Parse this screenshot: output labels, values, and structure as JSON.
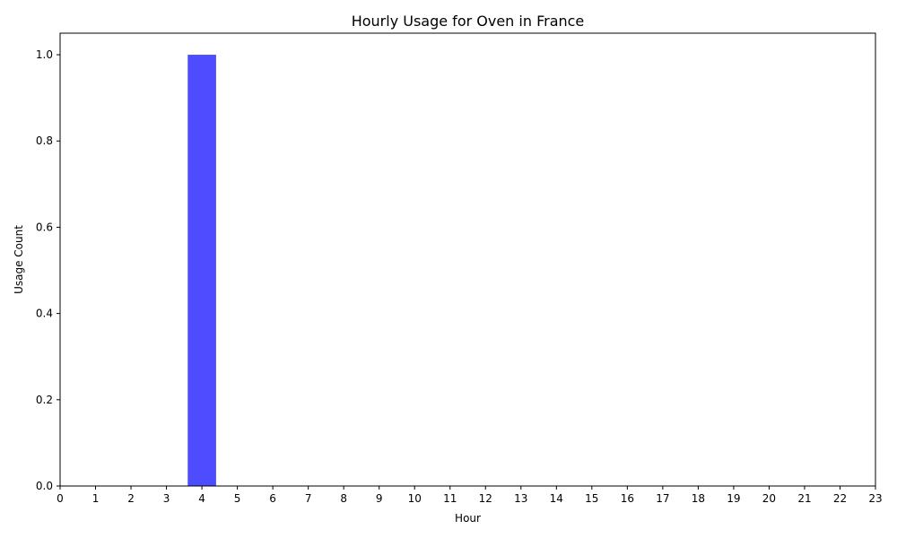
{
  "chart_data": {
    "type": "bar",
    "title": "Hourly Usage for Oven in France",
    "xlabel": "Hour",
    "ylabel": "Usage Count",
    "categories": [
      0,
      1,
      2,
      3,
      4,
      5,
      6,
      7,
      8,
      9,
      10,
      11,
      12,
      13,
      14,
      15,
      16,
      17,
      18,
      19,
      20,
      21,
      22,
      23
    ],
    "values": [
      0,
      0,
      0,
      0,
      1,
      0,
      0,
      0,
      0,
      0,
      0,
      0,
      0,
      0,
      0,
      0,
      0,
      0,
      0,
      0,
      0,
      0,
      0,
      0
    ],
    "x_ticks": [
      "0",
      "1",
      "2",
      "3",
      "4",
      "5",
      "6",
      "7",
      "8",
      "9",
      "10",
      "11",
      "12",
      "13",
      "14",
      "15",
      "16",
      "17",
      "18",
      "19",
      "20",
      "21",
      "22",
      "23"
    ],
    "y_ticks": [
      "0.0",
      "0.2",
      "0.4",
      "0.6",
      "0.8",
      "1.0"
    ],
    "xlim": [
      0,
      23
    ],
    "ylim": [
      0,
      1.05
    ],
    "grid": false,
    "bar_color": "#4d4dff"
  }
}
